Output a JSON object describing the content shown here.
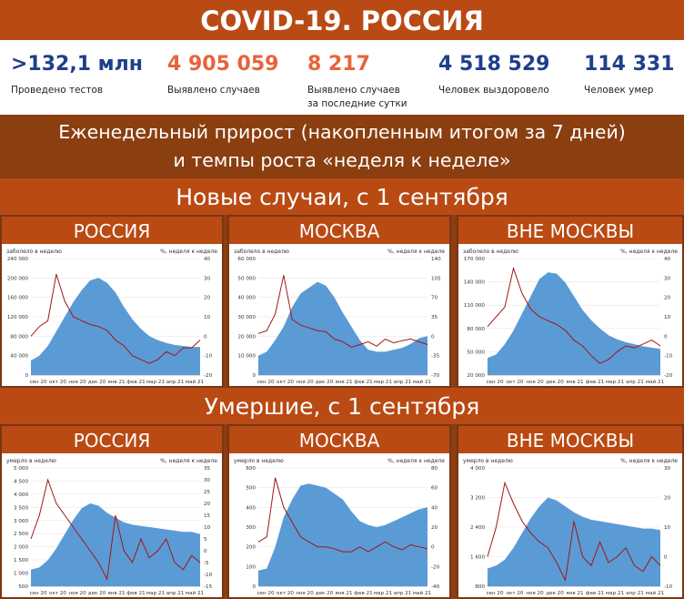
{
  "header": {
    "title": "COVID-19. РОССИЯ"
  },
  "stats": [
    {
      "value": ">132,1 млн",
      "label": "Проведено тестов",
      "label2": "",
      "color": "#1f3f8a"
    },
    {
      "value": "4 905 059",
      "label": "Выявлено случаев",
      "label2": "",
      "color": "#e8633a"
    },
    {
      "value": "8 217",
      "label": "Выявлено случаев",
      "label2": "за последние сутки",
      "color": "#e8633a"
    },
    {
      "value": "4 518 529",
      "label": "Человек выздоровело",
      "label2": "",
      "color": "#1f3f8a"
    },
    {
      "value": "114 331",
      "label": "Человек умер",
      "label2": "",
      "color": "#1f3f8a"
    }
  ],
  "weekly": {
    "line1": "Еженедельный прирост (накопленным итогом за 7 дней)",
    "line2": "и темпы роста «неделя к неделе»"
  },
  "section_cases": {
    "title": "Новые случаи, с 1 сентября"
  },
  "section_deaths": {
    "title": "Умершие, с 1 сентября"
  },
  "colors": {
    "area": "#5b9bd5",
    "line": "#a31515",
    "orange": "#b94a14",
    "dark": "#8b3e10"
  },
  "chart_data": [
    {
      "type": "area",
      "panel_title": "РОССИЯ",
      "left_label": "заболело в неделю",
      "right_label": "%, неделя к неделе",
      "ylim": [
        0,
        240000
      ],
      "yticks": [
        "0",
        "40 000",
        "80 000",
        "120 000",
        "160 000",
        "200 000",
        "240 000"
      ],
      "y2lim": [
        -20,
        40
      ],
      "y2ticks": [
        "-20",
        "-10",
        "0",
        "10",
        "20",
        "30",
        "40"
      ],
      "xticks": [
        "сен 20",
        "окт 20",
        "ноя 20",
        "дек 20",
        "янв 21",
        "фев 21",
        "мар 21",
        "апр 21",
        "май 21"
      ],
      "area": [
        30000,
        40000,
        60000,
        90000,
        120000,
        150000,
        175000,
        195000,
        200000,
        190000,
        170000,
        140000,
        115000,
        95000,
        80000,
        72000,
        66000,
        62000,
        60000,
        58000,
        58000
      ],
      "line": [
        0,
        5,
        8,
        32,
        18,
        10,
        8,
        6,
        5,
        3,
        -2,
        -5,
        -10,
        -12,
        -14,
        -12,
        -8,
        -10,
        -6,
        -6,
        -2
      ]
    },
    {
      "type": "area",
      "panel_title": "МОСКВА",
      "left_label": "заболело в неделю",
      "right_label": "%, неделя к неделе",
      "ylim": [
        0,
        60000
      ],
      "yticks": [
        "0",
        "10 000",
        "20 000",
        "30 000",
        "40 000",
        "50 000",
        "60 000"
      ],
      "y2lim": [
        -70,
        140
      ],
      "y2ticks": [
        "-70",
        "-35",
        "0",
        "35",
        "70",
        "105",
        "140"
      ],
      "xticks": [
        "сен 20",
        "окт 20",
        "ноя 20",
        "дек 20",
        "янв 21",
        "фев 21",
        "мар 21",
        "апр 21",
        "май 21"
      ],
      "area": [
        10000,
        12000,
        18000,
        25000,
        35000,
        42000,
        45000,
        48000,
        46000,
        40000,
        32000,
        25000,
        18000,
        13000,
        12000,
        12000,
        13000,
        14000,
        16000,
        19000,
        20000
      ],
      "line": [
        5,
        10,
        40,
        110,
        30,
        20,
        15,
        10,
        8,
        -5,
        -10,
        -20,
        -15,
        -10,
        -18,
        -5,
        -12,
        -8,
        -5,
        -10,
        -15
      ]
    },
    {
      "type": "area",
      "panel_title": "ВНЕ МОСКВЫ",
      "left_label": "заболело в неделю",
      "right_label": "%, неделя к неделе",
      "ylim": [
        0,
        170000
      ],
      "yticks": [
        "20 000",
        "50 000",
        "80 000",
        "110 000",
        "140 000",
        "170 000"
      ],
      "y2lim": [
        -20,
        40
      ],
      "y2ticks": [
        "-20",
        "-10",
        "0",
        "10",
        "20",
        "30",
        "40"
      ],
      "xticks": [
        "сен 20",
        "окт 20",
        "ноя 20",
        "дек 20",
        "янв 21",
        "фев 21",
        "мар 21",
        "апр 21",
        "май 21"
      ],
      "area": [
        25000,
        30000,
        45000,
        65000,
        90000,
        115000,
        140000,
        150000,
        148000,
        135000,
        115000,
        95000,
        80000,
        68000,
        58000,
        52000,
        48000,
        45000,
        42000,
        40000,
        38000
      ],
      "line": [
        5,
        10,
        15,
        35,
        22,
        14,
        10,
        8,
        6,
        3,
        -2,
        -5,
        -10,
        -14,
        -12,
        -8,
        -5,
        -6,
        -4,
        -2,
        -5
      ]
    },
    {
      "type": "area",
      "panel_title": "РОССИЯ",
      "left_label": "умерло в неделю",
      "right_label": "%, неделя к неделе",
      "ylim": [
        0,
        5000
      ],
      "yticks": [
        "500",
        "1 000",
        "1 500",
        "2 000",
        "2 500",
        "3 000",
        "3 500",
        "4 000",
        "4 500",
        "5 000"
      ],
      "y2lim": [
        -15,
        35
      ],
      "y2ticks": [
        "-15",
        "-10",
        "-5",
        "0",
        "5",
        "10",
        "15",
        "20",
        "25",
        "30",
        "35"
      ],
      "xticks": [
        "сен 20",
        "окт 20",
        "ноя 20",
        "дек 20",
        "янв 21",
        "фев 21",
        "мар 21",
        "апр 21",
        "май 21"
      ],
      "area": [
        700,
        800,
        1100,
        1600,
        2200,
        2800,
        3300,
        3500,
        3400,
        3100,
        2900,
        2700,
        2600,
        2550,
        2500,
        2450,
        2400,
        2350,
        2300,
        2300,
        2200
      ],
      "line": [
        5,
        15,
        30,
        20,
        15,
        10,
        5,
        0,
        -5,
        -12,
        15,
        0,
        -5,
        5,
        -3,
        0,
        5,
        -5,
        -8,
        -2,
        -5
      ]
    },
    {
      "type": "area",
      "panel_title": "МОСКВА",
      "left_label": "умерло в неделю",
      "right_label": "%, неделя к неделе",
      "ylim": [
        0,
        600
      ],
      "yticks": [
        "0",
        "100",
        "200",
        "300",
        "400",
        "500",
        "600"
      ],
      "y2lim": [
        -40,
        80
      ],
      "y2ticks": [
        "-40",
        "-20",
        "0",
        "20",
        "40",
        "60",
        "80"
      ],
      "xticks": [
        "сен 20",
        "окт 20",
        "ноя 20",
        "дек 20",
        "янв 21",
        "фев 21",
        "мар 21",
        "апр 21",
        "май 21"
      ],
      "area": [
        80,
        90,
        200,
        350,
        440,
        510,
        520,
        510,
        500,
        470,
        440,
        380,
        330,
        310,
        300,
        310,
        330,
        350,
        370,
        390,
        400
      ],
      "line": [
        5,
        10,
        70,
        40,
        25,
        10,
        5,
        0,
        0,
        -2,
        -5,
        -5,
        0,
        -5,
        0,
        5,
        0,
        -3,
        2,
        0,
        -2
      ]
    },
    {
      "type": "area",
      "panel_title": "ВНЕ МОСКВЫ",
      "left_label": "умерло в неделю",
      "right_label": "%, неделя к неделе",
      "ylim": [
        0,
        4000
      ],
      "yticks": [
        "800",
        "1 600",
        "2 400",
        "3 200",
        "4 000"
      ],
      "y2lim": [
        -10,
        30
      ],
      "y2ticks": [
        "-10",
        "0",
        "10",
        "20",
        "30"
      ],
      "xticks": [
        "сен 20",
        "окт 20",
        "ноя 20",
        "дек 20",
        "янв 21",
        "фев 21",
        "мар 21",
        "апр 21",
        "май 21"
      ],
      "area": [
        600,
        700,
        900,
        1300,
        1800,
        2300,
        2700,
        3000,
        2900,
        2700,
        2500,
        2350,
        2250,
        2200,
        2150,
        2100,
        2050,
        2000,
        1950,
        1950,
        1900
      ],
      "line": [
        0,
        10,
        25,
        18,
        12,
        8,
        5,
        3,
        -2,
        -8,
        12,
        0,
        -3,
        5,
        -2,
        0,
        3,
        -3,
        -5,
        0,
        -3
      ]
    }
  ]
}
